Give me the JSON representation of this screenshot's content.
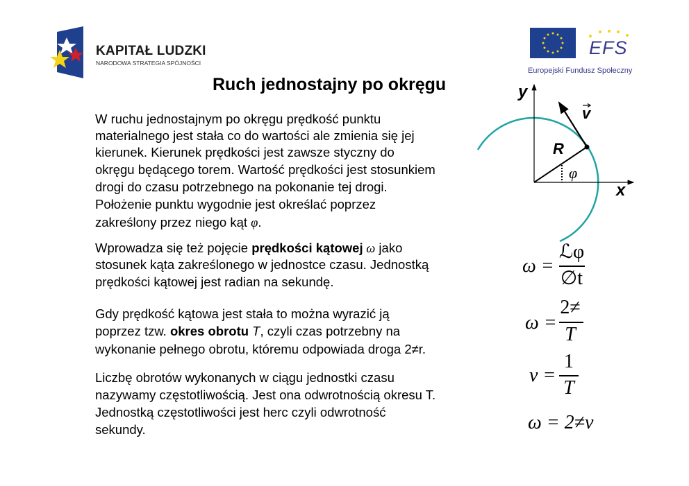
{
  "logos": {
    "left": {
      "title": "KAPITAŁ LUDZKI",
      "subtitle": "NARODOWA STRATEGIA SPÓJNOŚCI"
    },
    "right": {
      "mark": "EFS",
      "caption": "Europejski Fundusz Społeczny"
    }
  },
  "title": "Ruch jednostajny po okręgu",
  "paragraphs": {
    "p1": [
      "W ruchu jednostajnym po okręgu prędkość punktu",
      "materialnego jest stała co do wartości ale zmienia się jej",
      "kierunek. Kierunek prędkości jest zawsze styczny do",
      "okręgu będącego torem. Wartość prędkości jest stosunkiem",
      "drogi do czasu potrzebnego na pokonanie tej drogi.",
      "Położenie punktu wygodnie jest określać poprzez"
    ],
    "p1_last": {
      "text": "zakreślony przez niego kąt ",
      "sym": "φ",
      "end": "."
    },
    "p2": {
      "a": "Wprowadza się też pojęcie ",
      "bold": "prędkości kątowej",
      "sym": " ω",
      "b": " jako",
      "l2": "stosunek kąta zakreślonego w jednostce czasu. Jednostką",
      "l3": "prędkości kątowej jest radian na sekundę."
    },
    "p3": {
      "l1": "Gdy prędkość kątowa jest stała to można wyrazić ją",
      "l2a": "poprzez tzw. ",
      "l2bold": "okres obrotu",
      "l2sym": " T",
      "l2b": ",  czyli czas potrzebny na",
      "l3": "wykonanie pełnego obrotu, któremu odpowiada droga 2≠r."
    },
    "p4": [
      "Liczbę obrotów wykonanych w ciągu jednostki czasu",
      "nazywamy częstotliwością. Jest ona odwrotnością okresu T.",
      "Jednostką częstotliwości jest herc czyli odwrotność",
      "sekundy."
    ]
  },
  "diagram": {
    "y_label": "y",
    "x_label": "x",
    "v_label": "v",
    "r_label": "R",
    "angle_label": "φ",
    "arc_color": "#1fa3a3"
  },
  "equations": [
    {
      "lhs": "ω =",
      "num": "ℒφ",
      "den": "∅t"
    },
    {
      "lhs": "ω =",
      "num": "2≠",
      "den": "T"
    },
    {
      "lhs": "ν =",
      "num": "1",
      "den": "T"
    },
    {
      "full": "ω = 2≠ν"
    }
  ]
}
